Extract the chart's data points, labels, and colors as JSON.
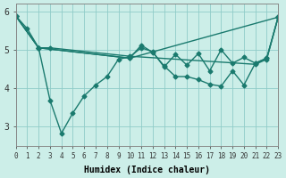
{
  "xlabel": "Humidex (Indice chaleur)",
  "ylabel": "",
  "background_color": "#cceee8",
  "line_color": "#1a7a6e",
  "grid_color": "#90ccc8",
  "xlim": [
    0,
    23
  ],
  "ylim": [
    2.5,
    6.2
  ],
  "yticks": [
    3,
    4,
    5,
    6
  ],
  "xticks": [
    0,
    1,
    2,
    3,
    4,
    5,
    6,
    7,
    8,
    9,
    10,
    11,
    12,
    13,
    14,
    15,
    16,
    17,
    18,
    19,
    20,
    21,
    22,
    23
  ],
  "line1_x": [
    0,
    1,
    2,
    3,
    10,
    21,
    22,
    23
  ],
  "line1_y": [
    5.88,
    5.55,
    5.05,
    5.05,
    4.83,
    4.62,
    4.75,
    5.85
  ],
  "line2_x": [
    0,
    2,
    10,
    11,
    12,
    13,
    14,
    15,
    16,
    17,
    18,
    19,
    20,
    21,
    22,
    23
  ],
  "line2_y": [
    5.88,
    5.05,
    4.78,
    5.12,
    4.93,
    4.58,
    4.3,
    4.3,
    4.22,
    4.1,
    4.05,
    4.45,
    4.08,
    4.65,
    4.78,
    5.85
  ],
  "line3_x": [
    0,
    2,
    3,
    4,
    5,
    6,
    7,
    8,
    9,
    10,
    11,
    12,
    13,
    14,
    15,
    16,
    17,
    18,
    19,
    20,
    21,
    22,
    23
  ],
  "line3_y": [
    5.88,
    5.05,
    3.68,
    2.82,
    3.35,
    3.8,
    4.08,
    4.3,
    4.75,
    4.82,
    5.05,
    4.95,
    4.55,
    4.88,
    4.6,
    4.9,
    4.45,
    5.0,
    4.65,
    4.8,
    4.65,
    4.78,
    5.85
  ],
  "line4_x": [
    0,
    2,
    10,
    23
  ],
  "line4_y": [
    5.88,
    5.05,
    4.78,
    5.85
  ]
}
